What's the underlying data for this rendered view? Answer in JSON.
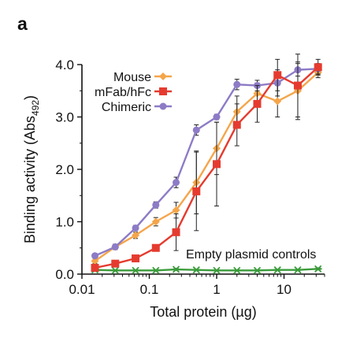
{
  "panel_label": "a",
  "chart_data": {
    "type": "line",
    "xscale": "log",
    "xlim": [
      0.01,
      40
    ],
    "ylim": [
      0,
      4
    ],
    "xlabel": "Total protein (µg)",
    "ylabel": "Binding activity (Abs",
    "ylabel_sub": "492",
    "ylabel_close": ")",
    "xticks": [
      {
        "value": 0.01,
        "label": "0.01"
      },
      {
        "value": 0.1,
        "label": "0.1"
      },
      {
        "value": 1,
        "label": "1"
      },
      {
        "value": 10,
        "label": "10"
      }
    ],
    "yticks": [
      {
        "value": 0,
        "label": "0.0"
      },
      {
        "value": 1,
        "label": "1.0"
      },
      {
        "value": 2,
        "label": "2.0"
      },
      {
        "value": 3,
        "label": "3.0"
      },
      {
        "value": 4,
        "label": "4.0"
      }
    ],
    "legend_position": "top-left",
    "annotation": "Empty plasmid controls",
    "series": [
      {
        "name": "Mouse",
        "color": "#f5a54a",
        "marker": "diamond",
        "x": [
          0.0156,
          0.03125,
          0.0625,
          0.125,
          0.25,
          0.5,
          1,
          2,
          4,
          8,
          16,
          32
        ],
        "y": [
          0.25,
          0.52,
          0.74,
          1.0,
          1.22,
          1.75,
          2.4,
          3.1,
          3.45,
          3.3,
          3.5,
          3.85
        ],
        "err": [
          0.05,
          0.05,
          0.06,
          0.08,
          0.15,
          0.6,
          0.5,
          0.3,
          0.2,
          0.3,
          0.55,
          0.1
        ]
      },
      {
        "name": "mFab/hFc",
        "color": "#e53b2f",
        "marker": "square",
        "x": [
          0.0156,
          0.03125,
          0.0625,
          0.125,
          0.25,
          0.5,
          1,
          2,
          4,
          8,
          16,
          32
        ],
        "y": [
          0.12,
          0.2,
          0.3,
          0.5,
          0.8,
          1.58,
          2.1,
          2.85,
          3.25,
          3.8,
          3.6,
          3.95
        ],
        "err": [
          0.03,
          0.04,
          0.05,
          0.06,
          0.35,
          0.75,
          0.8,
          0.4,
          0.35,
          0.3,
          0.6,
          0.15
        ]
      },
      {
        "name": "Chimeric",
        "color": "#8d7bc6",
        "marker": "circle",
        "x": [
          0.0156,
          0.03125,
          0.0625,
          0.125,
          0.25,
          0.5,
          1,
          2,
          4,
          8,
          16,
          32
        ],
        "y": [
          0.35,
          0.52,
          0.88,
          1.32,
          1.75,
          2.75,
          3.0,
          3.62,
          3.6,
          3.65,
          3.9,
          3.92
        ],
        "err": [
          0.04,
          0.05,
          0.05,
          0.06,
          0.1,
          0.1,
          0.05,
          0.1,
          0.1,
          0.25,
          0.12,
          0.1
        ]
      },
      {
        "name": "Empty plasmid controls",
        "color": "#3a9c3a",
        "marker": "star",
        "x": [
          0.0156,
          0.03125,
          0.0625,
          0.125,
          0.25,
          0.5,
          1,
          2,
          4,
          8,
          16,
          32
        ],
        "y": [
          0.08,
          0.07,
          0.07,
          0.07,
          0.09,
          0.08,
          0.07,
          0.07,
          0.07,
          0.08,
          0.08,
          0.1
        ],
        "err": [
          0.01,
          0.01,
          0.01,
          0.01,
          0.02,
          0.01,
          0.01,
          0.01,
          0.01,
          0.01,
          0.01,
          0.02
        ]
      }
    ]
  }
}
